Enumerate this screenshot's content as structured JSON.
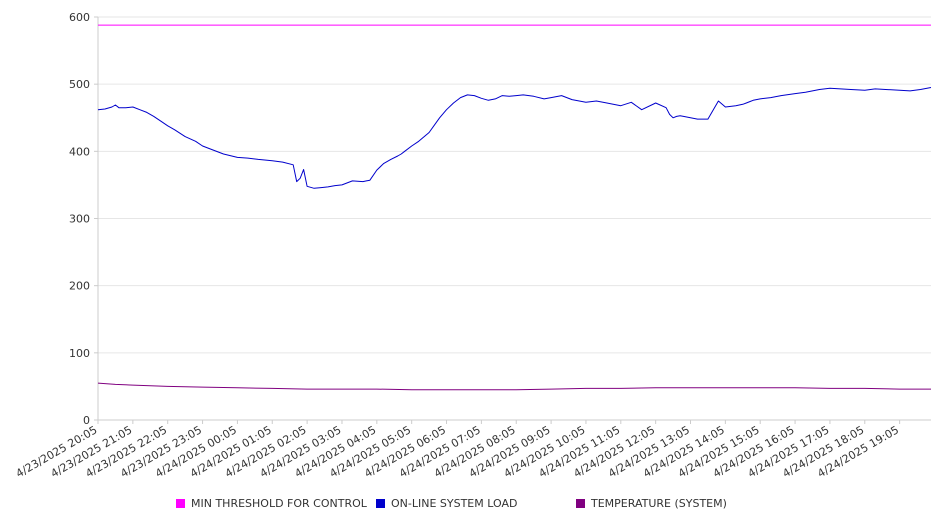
{
  "chart_data": {
    "type": "line",
    "ylim": [
      0,
      600
    ],
    "yticks": [
      0,
      100,
      200,
      300,
      400,
      500,
      600
    ],
    "grid": true,
    "legend_position": "bottom",
    "categories": [
      "4/23/2025 20:05",
      "4/23/2025 21:05",
      "4/23/2025 22:05",
      "4/23/2025 23:05",
      "4/24/2025 00:05",
      "4/24/2025 01:05",
      "4/24/2025 02:05",
      "4/24/2025 03:05",
      "4/24/2025 04:05",
      "4/24/2025 05:05",
      "4/24/2025 06:05",
      "4/24/2025 07:05",
      "4/24/2025 08:05",
      "4/24/2025 09:05",
      "4/24/2025 10:05",
      "4/24/2025 11:05",
      "4/24/2025 12:05",
      "4/24/2025 13:05",
      "4/24/2025 14:05",
      "4/24/2025 15:05",
      "4/24/2025 16:05",
      "4/24/2025 17:05",
      "4/24/2025 18:05",
      "4/24/2025 19:05"
    ],
    "series": [
      {
        "name": "MIN THRESHOLD FOR CONTROL",
        "color": "#ff00ff",
        "x": [
          0,
          23.9
        ],
        "y": [
          588,
          588
        ]
      },
      {
        "name": "ON-LINE SYSTEM LOAD",
        "color": "#0000cc",
        "x": [
          0,
          0.2,
          0.4,
          0.5,
          0.6,
          0.8,
          1.0,
          1.2,
          1.4,
          1.6,
          1.8,
          2.0,
          2.2,
          2.5,
          2.8,
          3.0,
          3.3,
          3.6,
          4.0,
          4.3,
          4.6,
          5.0,
          5.3,
          5.6,
          5.7,
          5.8,
          5.9,
          6.0,
          6.2,
          6.4,
          6.6,
          6.8,
          7.0,
          7.3,
          7.6,
          7.7,
          7.8,
          8.0,
          8.2,
          8.4,
          8.6,
          8.7,
          8.8,
          9.0,
          9.2,
          9.5,
          9.8,
          10.0,
          10.2,
          10.4,
          10.6,
          10.8,
          11.0,
          11.2,
          11.4,
          11.6,
          11.8,
          12.0,
          12.2,
          12.5,
          12.8,
          13.0,
          13.3,
          13.6,
          14.0,
          14.3,
          14.6,
          15.0,
          15.3,
          15.6,
          16.0,
          16.3,
          16.4,
          16.5,
          16.6,
          16.7,
          16.8,
          17.0,
          17.2,
          17.5,
          17.8,
          18.0,
          18.3,
          18.5,
          18.6,
          18.7,
          18.8,
          19.0,
          19.3,
          19.6,
          20.0,
          20.3,
          20.5,
          20.7,
          21.0,
          21.3,
          21.6,
          22.0,
          22.3,
          22.6,
          23.0,
          23.3,
          23.6,
          23.9
        ],
        "y": [
          462,
          463,
          466,
          469,
          465,
          465,
          466,
          462,
          458,
          452,
          445,
          438,
          432,
          422,
          415,
          408,
          402,
          396,
          391,
          390,
          388,
          386,
          384,
          380,
          355,
          360,
          373,
          348,
          345,
          346,
          347,
          349,
          350,
          356,
          355,
          356,
          357,
          372,
          382,
          388,
          393,
          396,
          400,
          408,
          415,
          428,
          450,
          462,
          472,
          480,
          484,
          483,
          479,
          476,
          478,
          483,
          482,
          483,
          484,
          482,
          478,
          480,
          483,
          477,
          473,
          475,
          472,
          468,
          473,
          462,
          472,
          465,
          455,
          450,
          452,
          453,
          452,
          450,
          448,
          448,
          475,
          466,
          468,
          470,
          472,
          474,
          476,
          478,
          480,
          483,
          486,
          488,
          490,
          492,
          494,
          493,
          492,
          491,
          493,
          492,
          491,
          490,
          492,
          495
        ]
      },
      {
        "name": "TEMPERATURE (SYSTEM)",
        "color": "#800080",
        "x": [
          0,
          0.5,
          1.0,
          2.0,
          3.0,
          4.0,
          5.0,
          6.0,
          7.0,
          8.0,
          9.0,
          10.0,
          11.0,
          12.0,
          13.0,
          14.0,
          15.0,
          16.0,
          17.0,
          18.0,
          19.0,
          20.0,
          21.0,
          22.0,
          23.0,
          23.9
        ],
        "y": [
          55,
          53,
          52,
          50,
          49,
          48,
          47,
          46,
          46,
          46,
          45,
          45,
          45,
          45,
          46,
          47,
          47,
          48,
          48,
          48,
          48,
          48,
          47,
          47,
          46,
          46
        ]
      }
    ]
  }
}
